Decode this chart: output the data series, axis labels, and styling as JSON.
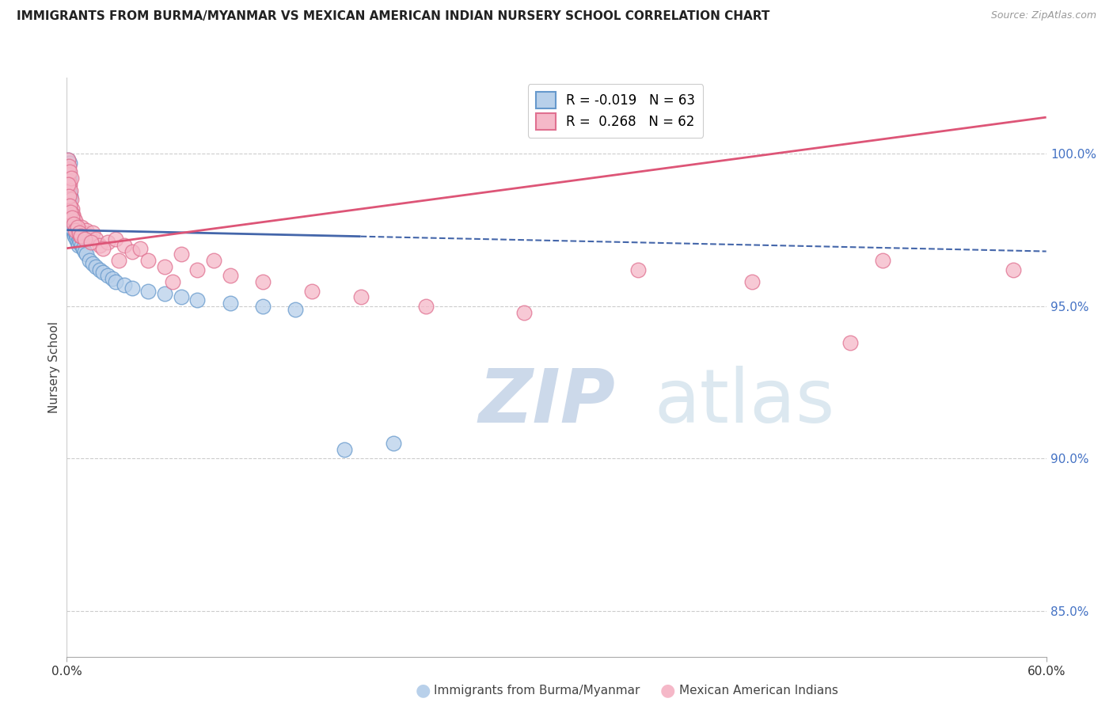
{
  "title": "IMMIGRANTS FROM BURMA/MYANMAR VS MEXICAN AMERICAN INDIAN NURSERY SCHOOL CORRELATION CHART",
  "source": "Source: ZipAtlas.com",
  "ylabel": "Nursery School",
  "y_ticks": [
    85.0,
    90.0,
    95.0,
    100.0
  ],
  "y_tick_labels": [
    "85.0%",
    "90.0%",
    "95.0%",
    "100.0%"
  ],
  "blue_R": "-0.019",
  "blue_N": "63",
  "pink_R": "0.268",
  "pink_N": "62",
  "blue_dot_face": "#b8d0ea",
  "blue_dot_edge": "#6699cc",
  "pink_dot_face": "#f5b8c8",
  "pink_dot_edge": "#e07090",
  "blue_line_color": "#4466aa",
  "pink_line_color": "#dd5577",
  "legend_blue_label": "Immigrants from Burma/Myanmar",
  "legend_pink_label": "Mexican American Indians",
  "watermark_zip": "ZIP",
  "watermark_atlas": "atlas",
  "xlim": [
    0,
    60
  ],
  "ylim": [
    83.5,
    102.5
  ],
  "blue_line_x0": 0,
  "blue_line_y0": 97.5,
  "blue_line_x1": 60,
  "blue_line_y1": 96.8,
  "blue_solid_end": 18,
  "pink_line_x0": 0,
  "pink_line_y0": 96.9,
  "pink_line_x1": 60,
  "pink_line_y1": 101.2,
  "blue_scatter_x": [
    0.05,
    0.07,
    0.08,
    0.1,
    0.1,
    0.12,
    0.13,
    0.14,
    0.15,
    0.16,
    0.18,
    0.18,
    0.2,
    0.22,
    0.23,
    0.25,
    0.27,
    0.28,
    0.3,
    0.32,
    0.35,
    0.38,
    0.4,
    0.42,
    0.45,
    0.48,
    0.5,
    0.55,
    0.6,
    0.65,
    0.7,
    0.75,
    0.8,
    0.9,
    1.0,
    1.1,
    1.2,
    1.4,
    1.6,
    1.8,
    2.0,
    2.2,
    2.5,
    2.8,
    3.0,
    3.5,
    4.0,
    5.0,
    6.0,
    7.0,
    8.0,
    10.0,
    12.0,
    14.0,
    17.0,
    20.0,
    0.06,
    0.09,
    0.11,
    0.17,
    0.19,
    0.24,
    0.29
  ],
  "blue_scatter_y": [
    99.2,
    99.8,
    99.5,
    99.1,
    99.6,
    99.3,
    99.0,
    99.4,
    98.8,
    99.7,
    99.2,
    98.5,
    98.2,
    98.0,
    98.6,
    97.8,
    98.1,
    97.9,
    97.6,
    97.8,
    97.5,
    97.7,
    97.4,
    97.5,
    97.3,
    97.6,
    97.4,
    97.2,
    97.3,
    97.1,
    97.0,
    97.2,
    97.1,
    97.0,
    96.9,
    96.8,
    96.7,
    96.5,
    96.4,
    96.3,
    96.2,
    96.1,
    96.0,
    95.9,
    95.8,
    95.7,
    95.6,
    95.5,
    95.4,
    95.3,
    95.2,
    95.1,
    95.0,
    94.9,
    90.3,
    90.5,
    99.0,
    99.3,
    98.9,
    98.7,
    98.3,
    97.9,
    97.6
  ],
  "pink_scatter_x": [
    0.06,
    0.08,
    0.1,
    0.12,
    0.15,
    0.18,
    0.2,
    0.22,
    0.25,
    0.28,
    0.3,
    0.35,
    0.4,
    0.45,
    0.5,
    0.55,
    0.6,
    0.7,
    0.8,
    0.9,
    1.0,
    1.2,
    1.4,
    1.6,
    1.8,
    2.0,
    2.5,
    3.0,
    3.5,
    4.0,
    4.5,
    5.0,
    6.0,
    7.0,
    8.0,
    9.0,
    10.0,
    12.0,
    15.0,
    18.0,
    22.0,
    28.0,
    35.0,
    42.0,
    50.0,
    58.0,
    0.07,
    0.11,
    0.16,
    0.24,
    0.32,
    0.42,
    0.52,
    0.65,
    0.75,
    0.85,
    1.1,
    1.5,
    2.2,
    3.2,
    6.5,
    48.0
  ],
  "pink_scatter_y": [
    99.5,
    99.8,
    99.3,
    99.6,
    99.1,
    99.4,
    99.0,
    98.8,
    99.2,
    98.5,
    98.2,
    98.0,
    97.9,
    97.7,
    97.8,
    97.6,
    97.5,
    97.4,
    97.3,
    97.6,
    97.4,
    97.5,
    97.3,
    97.4,
    97.2,
    97.0,
    97.1,
    97.2,
    97.0,
    96.8,
    96.9,
    96.5,
    96.3,
    96.7,
    96.2,
    96.5,
    96.0,
    95.8,
    95.5,
    95.3,
    95.0,
    94.8,
    96.2,
    95.8,
    96.5,
    96.2,
    99.0,
    98.6,
    98.3,
    98.1,
    97.9,
    97.7,
    97.5,
    97.6,
    97.4,
    97.3,
    97.2,
    97.1,
    96.9,
    96.5,
    95.8,
    93.8
  ],
  "grid_color": "#cccccc",
  "background_color": "#ffffff"
}
